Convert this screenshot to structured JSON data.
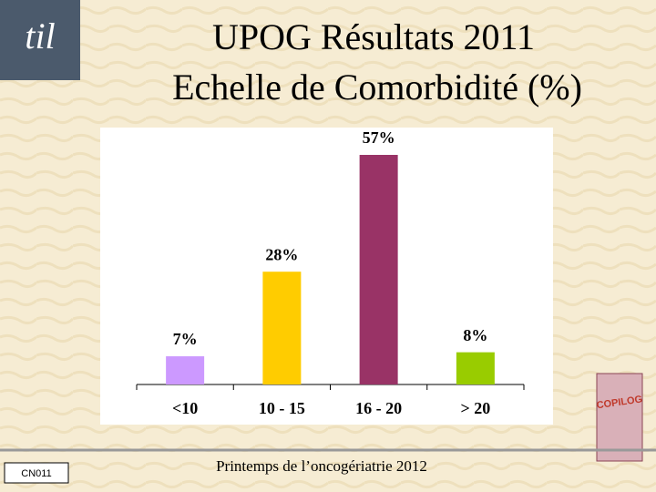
{
  "chart_data": {
    "type": "bar",
    "title": "UPOG Résultats 2011",
    "subtitle": "Echelle de Comorbidité (%)",
    "categories": [
      "<10",
      "10 - 15",
      "16 - 20",
      "> 20"
    ],
    "values": [
      7,
      28,
      57,
      8
    ],
    "value_labels": [
      "7%",
      "28%",
      "57%",
      "8%"
    ],
    "colors": [
      "#cc99ff",
      "#ffcc00",
      "#993366",
      "#99cc00"
    ]
  },
  "footer": {
    "text": "Printemps de l’oncogériatrie 2012",
    "code": "CN011"
  },
  "logos": {
    "left": "til",
    "right": "COPILOG"
  }
}
